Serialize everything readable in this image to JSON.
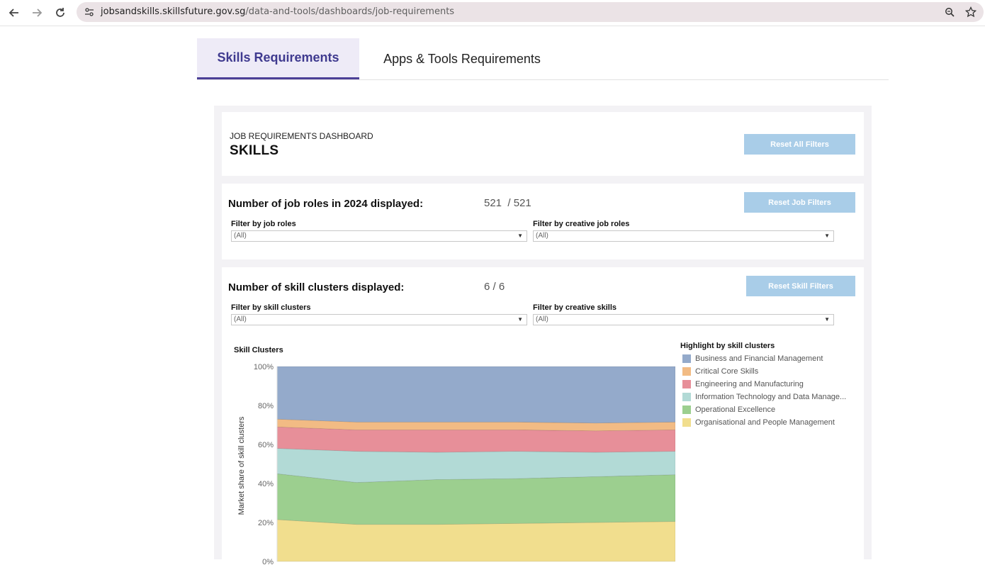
{
  "browser": {
    "url_host": "jobsandskills.skillsfuture.gov.sg",
    "url_path": "/data-and-tools/dashboards/job-requirements"
  },
  "tabs": [
    {
      "label": "Skills Requirements",
      "active": true
    },
    {
      "label": "Apps & Tools Requirements",
      "active": false
    }
  ],
  "header": {
    "subtitle": "JOB REQUIREMENTS DASHBOARD",
    "title": "SKILLS",
    "reset_all_label": "Reset All Filters"
  },
  "job_filters": {
    "count_label": "Number of job roles in 2024 displayed:",
    "count_value": "521  / 521",
    "reset_label": "Reset Job Filters",
    "filter_roles_label": "Filter by job roles",
    "filter_roles_value": "(All)",
    "filter_creative_label": "Filter by creative job roles",
    "filter_creative_value": "(All)"
  },
  "skill_filters": {
    "count_label": "Number of skill clusters displayed:",
    "count_value": "6 / 6",
    "reset_label": "Reset Skill Filters",
    "filter_clusters_label": "Filter by skill clusters",
    "filter_clusters_value": "(All)",
    "filter_creative_label": "Filter by creative skills",
    "filter_creative_value": "(All)"
  },
  "legend": {
    "title": "Highlight by skill clusters",
    "items": [
      {
        "label": "Business and Financial Management",
        "color": "#94aacb"
      },
      {
        "label": "Critical Core Skills",
        "color": "#f2bb84"
      },
      {
        "label": "Engineering and Manufacturing",
        "color": "#e78f99"
      },
      {
        "label": "Information Technology and Data Manage...",
        "color": "#b2dad6"
      },
      {
        "label": "Operational Excellence",
        "color": "#9ccf8f"
      },
      {
        "label": "Organisational and People Management",
        "color": "#f1de8e"
      }
    ]
  },
  "chart_data": {
    "type": "area",
    "title": "Skill Clusters",
    "ylabel": "Market share of skill clusters",
    "ylim": [
      0,
      100
    ],
    "yticks": [
      "100%",
      "80%",
      "60%",
      "40%",
      "20%",
      "0%"
    ],
    "x": [
      0,
      1,
      2,
      3,
      4,
      5
    ],
    "series": [
      {
        "name": "Organisational and People Management",
        "values": [
          21.5,
          19,
          19,
          19.5,
          20,
          20.5
        ]
      },
      {
        "name": "Operational Excellence",
        "values": [
          23.5,
          21.5,
          23,
          23,
          23.5,
          24
        ]
      },
      {
        "name": "Information Technology and Data Manage...",
        "values": [
          13,
          16,
          14,
          14,
          12.5,
          12
        ]
      },
      {
        "name": "Engineering and Manufacturing",
        "values": [
          11,
          11,
          11.5,
          11,
          11,
          11
        ]
      },
      {
        "name": "Critical Core Skills",
        "values": [
          4,
          4,
          4,
          4,
          4,
          4
        ]
      },
      {
        "name": "Business and Financial Management",
        "values": [
          27,
          28.5,
          28.5,
          28.5,
          29,
          28.5
        ]
      }
    ]
  }
}
